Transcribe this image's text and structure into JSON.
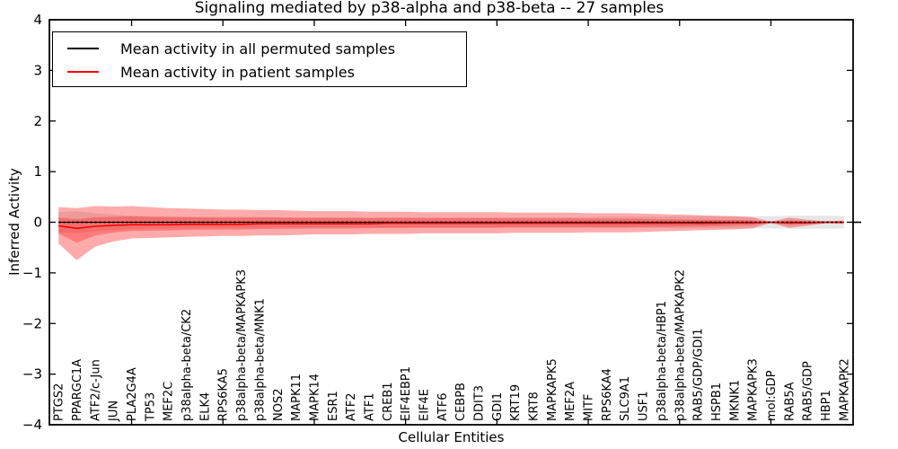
{
  "figure": {
    "title": "Signaling mediated by p38-alpha and p38-beta -- 27 samples",
    "xlabel": "Cellular Entities",
    "ylabel": "Inferred Activity"
  },
  "legend": {
    "items": [
      {
        "label": "Mean activity in all permuted samples",
        "color": "#000000"
      },
      {
        "label": "Mean activity in patient samples",
        "color": "#ff0000"
      }
    ]
  },
  "chart_data": {
    "type": "line",
    "title": "Signaling mediated by p38-alpha and p38-beta -- 27 samples",
    "xlabel": "Cellular Entities",
    "ylabel": "Inferred Activity",
    "ylim": [
      -4,
      4
    ],
    "ytick_values": [
      4,
      3,
      2,
      1,
      0,
      -1,
      -2,
      -3,
      -4
    ],
    "ytick_labels": [
      "4",
      "3",
      "2",
      "1",
      "0",
      "−1",
      "−2",
      "−3",
      "−4"
    ],
    "xtick_values": [
      5,
      10,
      15,
      20,
      25,
      30,
      35,
      40
    ],
    "grid": false,
    "legend_position": "upper left",
    "categories": [
      "PTGS2",
      "PPARGC1A",
      "ATF2/c-Jun",
      "JUN",
      "PLA2G4A",
      "TP53",
      "MEF2C",
      "p38alpha-beta/CK2",
      "ELK4",
      "RPS6KA5",
      "p38alpha-beta/MAPKAPK3",
      "p38alpha-beta/MNK1",
      "NOS2",
      "MAPK11",
      "MAPK14",
      "ESR1",
      "ATF2",
      "ATF1",
      "CREB1",
      "EIF4EBP1",
      "EIF4E",
      "ATF6",
      "CEBPB",
      "DDIT3",
      "GDI1",
      "KRT19",
      "KRT8",
      "MAPKAPK5",
      "MEF2A",
      "MITF",
      "RPS6KA4",
      "SLC9A1",
      "USF1",
      "p38alpha-beta/HBP1",
      "p38alpha-beta/MAPKAPK2",
      "RAB5/GDP/GDI1",
      "HSPB1",
      "MKNK1",
      "MAPKAPK3",
      "mol:GDP",
      "RAB5A",
      "RAB5/GDP",
      "HBP1",
      "MAPKAPK2"
    ],
    "series": [
      {
        "name": "Mean activity in all permuted samples",
        "color": "#000000",
        "line_width": 1.1,
        "dashed_overlay": true,
        "values": [
          0,
          0,
          0,
          0,
          0,
          0,
          0,
          0,
          0,
          0,
          0,
          0,
          0,
          0,
          0,
          0,
          0,
          0,
          0,
          0,
          0,
          0,
          0,
          0,
          0,
          0,
          0,
          0,
          0,
          0,
          0,
          0,
          0,
          0,
          0,
          0,
          0,
          0,
          0,
          0,
          0,
          0,
          0,
          0
        ],
        "band_upper": [
          0.2,
          0.22,
          0.18,
          0.15,
          0.13,
          0.12,
          0.12,
          0.11,
          0.11,
          0.11,
          0.11,
          0.11,
          0.1,
          0.1,
          0.1,
          0.1,
          0.1,
          0.1,
          0.1,
          0.1,
          0.1,
          0.1,
          0.1,
          0.1,
          0.1,
          0.1,
          0.1,
          0.1,
          0.1,
          0.1,
          0.11,
          0.11,
          0.11,
          0.11,
          0.12,
          0.12,
          0.12,
          0.12,
          0.12,
          0.12,
          0.13,
          0.13,
          0.13,
          0.12
        ],
        "band_lower": [
          -0.2,
          -0.22,
          -0.18,
          -0.15,
          -0.13,
          -0.12,
          -0.12,
          -0.11,
          -0.11,
          -0.11,
          -0.11,
          -0.11,
          -0.1,
          -0.1,
          -0.1,
          -0.1,
          -0.1,
          -0.1,
          -0.1,
          -0.1,
          -0.1,
          -0.1,
          -0.1,
          -0.1,
          -0.1,
          -0.1,
          -0.1,
          -0.1,
          -0.1,
          -0.1,
          -0.11,
          -0.11,
          -0.11,
          -0.11,
          -0.12,
          -0.12,
          -0.12,
          -0.12,
          -0.12,
          -0.12,
          -0.13,
          -0.13,
          -0.13,
          -0.12
        ],
        "band_color": "#808080",
        "band_alpha": 0.2
      },
      {
        "name": "Mean activity in patient samples",
        "color": "#ff0000",
        "line_width": 1.6,
        "dashed_overlay": false,
        "values": [
          -0.07,
          -0.12,
          -0.08,
          -0.06,
          -0.05,
          -0.05,
          -0.05,
          -0.04,
          -0.04,
          -0.04,
          -0.04,
          -0.03,
          -0.03,
          -0.03,
          -0.03,
          -0.03,
          -0.03,
          -0.03,
          -0.02,
          -0.02,
          -0.02,
          -0.02,
          -0.02,
          -0.02,
          -0.02,
          -0.02,
          -0.02,
          -0.02,
          -0.02,
          -0.02,
          -0.02,
          -0.02,
          -0.02,
          -0.02,
          -0.02,
          -0.02,
          -0.02,
          -0.01,
          -0.01,
          0.0,
          -0.01,
          -0.01,
          0.0,
          0.0
        ],
        "band_upper": [
          0.3,
          0.28,
          0.32,
          0.31,
          0.32,
          0.3,
          0.28,
          0.27,
          0.26,
          0.25,
          0.25,
          0.24,
          0.24,
          0.23,
          0.22,
          0.22,
          0.22,
          0.21,
          0.21,
          0.21,
          0.2,
          0.2,
          0.2,
          0.2,
          0.2,
          0.19,
          0.19,
          0.19,
          0.19,
          0.18,
          0.18,
          0.18,
          0.17,
          0.16,
          0.15,
          0.14,
          0.13,
          0.12,
          0.1,
          0.01,
          0.09,
          0.05,
          0.02,
          0.03
        ],
        "band_lower": [
          -0.42,
          -0.75,
          -0.48,
          -0.38,
          -0.32,
          -0.31,
          -0.3,
          -0.29,
          -0.28,
          -0.27,
          -0.27,
          -0.26,
          -0.26,
          -0.25,
          -0.24,
          -0.24,
          -0.24,
          -0.23,
          -0.23,
          -0.23,
          -0.22,
          -0.22,
          -0.22,
          -0.22,
          -0.22,
          -0.21,
          -0.21,
          -0.21,
          -0.21,
          -0.2,
          -0.2,
          -0.2,
          -0.19,
          -0.18,
          -0.17,
          -0.16,
          -0.15,
          -0.14,
          -0.12,
          -0.01,
          -0.11,
          -0.07,
          -0.02,
          -0.03
        ],
        "band_color": "#ff0000",
        "band_alpha": 0.33,
        "inner_band_scale": 0.45,
        "inner_band_alpha": 0.28
      }
    ]
  }
}
